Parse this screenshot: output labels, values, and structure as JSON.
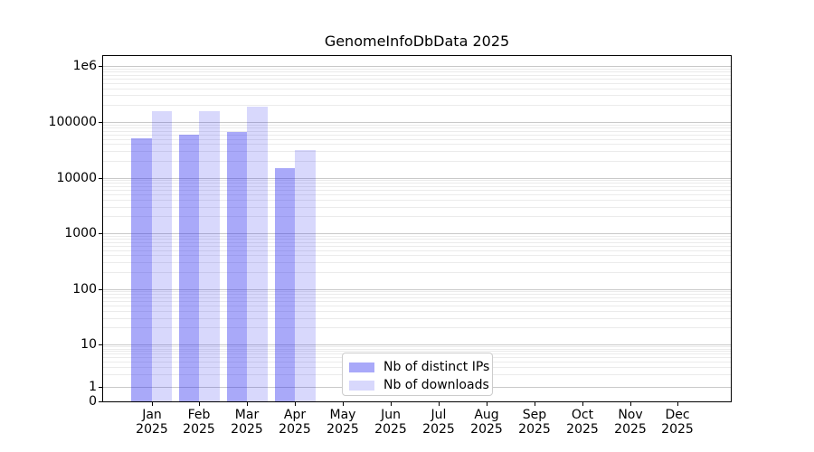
{
  "chart_data": {
    "type": "bar",
    "title": "GenomeInfoDbData 2025",
    "yscale": "log",
    "xlabel": "",
    "ylabel": "",
    "grid": "horizontal major and minor, on",
    "categories": [
      "Jan",
      "Feb",
      "Mar",
      "Apr",
      "May",
      "Jun",
      "Jul",
      "Aug",
      "Sep",
      "Oct",
      "Nov",
      "Dec"
    ],
    "category_year": "2025",
    "series": [
      {
        "name": "Nb of distinct IPs",
        "color": "#2828f0",
        "alpha": 0.4,
        "values": [
          52000,
          58500,
          66500,
          15000,
          null,
          null,
          null,
          null,
          null,
          null,
          null,
          null
        ]
      },
      {
        "name": "Nb of downloads",
        "color": "#2828f0",
        "alpha": 0.18,
        "values": [
          155000,
          154000,
          190000,
          31500,
          null,
          null,
          null,
          null,
          null,
          null,
          null,
          null
        ]
      }
    ],
    "y_ticks": [
      {
        "label": "1e6",
        "value": 1000000
      },
      {
        "label": "100000",
        "value": 100000
      },
      {
        "label": "10000",
        "value": 10000
      },
      {
        "label": "1000",
        "value": 1000
      },
      {
        "label": "100",
        "value": 100
      },
      {
        "label": "10",
        "value": 10
      },
      {
        "label": "1",
        "value": 1
      },
      {
        "label": "0",
        "value": 0
      }
    ],
    "ylim": [
      0,
      1500000
    ],
    "legend": {
      "position": "lower center inside plot",
      "entries": [
        "Nb of distinct IPs",
        "Nb of downloads"
      ]
    },
    "colors": {
      "background": "#ffffff",
      "axis": "#000000",
      "grid_major": "#c9c9c9",
      "grid_minor": "#ebebeb",
      "legend_border": "#cccccc",
      "text": "#000000"
    }
  }
}
